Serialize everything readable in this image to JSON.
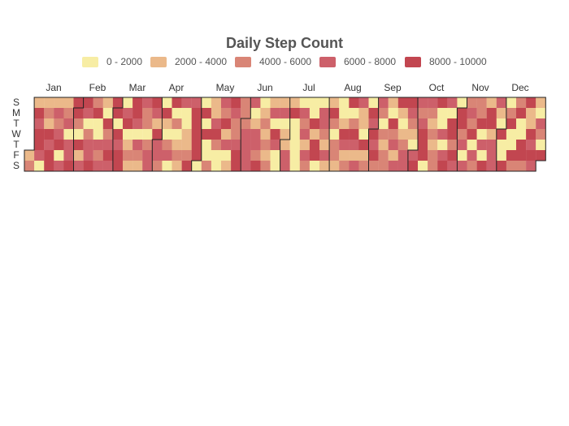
{
  "chart_data": {
    "type": "heatmap",
    "title": "Daily Step Count",
    "legend": {
      "placement": "top-center",
      "bins": [
        {
          "label": "0 - 2000",
          "color": "#f7eda4"
        },
        {
          "label": "2000 - 4000",
          "color": "#ebb98a"
        },
        {
          "label": "4000 - 6000",
          "color": "#d98576"
        },
        {
          "label": "6000 - 8000",
          "color": "#cd606a"
        },
        {
          "label": "8000 - 10000",
          "color": "#c24650"
        }
      ]
    },
    "month_labels": [
      "Jan",
      "Feb",
      "Mar",
      "Apr",
      "May",
      "Jun",
      "Jul",
      "Aug",
      "Sep",
      "Oct",
      "Nov",
      "Dec"
    ],
    "weekday_labels": [
      "S",
      "M",
      "T",
      "W",
      "T",
      "F",
      "S"
    ],
    "first_weekday": 5,
    "days_in_month": [
      31,
      28,
      31,
      30,
      31,
      30,
      31,
      31,
      30,
      31,
      30,
      31
    ],
    "values": [
      1,
      2,
      1,
      4,
      3,
      4,
      4,
      3,
      0,
      1,
      2,
      1,
      4,
      3,
      4,
      4,
      1,
      3,
      2,
      3,
      4,
      0,
      3,
      1,
      2,
      3,
      0,
      3,
      3,
      4,
      4,
      4,
      2,
      0,
      4,
      1,
      3,
      4,
      3,
      0,
      2,
      3,
      3,
      4,
      2,
      4,
      0,
      0,
      3,
      2,
      3,
      1,
      0,
      4,
      2,
      3,
      4,
      3,
      4,
      4,
      0,
      4,
      3,
      4,
      4,
      0,
      3,
      4,
      0,
      1,
      2,
      1,
      4,
      4,
      3,
      0,
      3,
      2,
      1,
      3,
      2,
      2,
      0,
      2,
      3,
      3,
      4,
      3,
      1,
      4,
      3,
      3,
      2,
      0,
      4,
      1,
      0,
      2,
      3,
      0,
      4,
      0,
      2,
      0,
      1,
      2,
      1,
      3,
      0,
      0,
      1,
      1,
      2,
      4,
      3,
      4,
      4,
      4,
      4,
      4,
      0,
      0,
      4,
      0,
      4,
      0,
      0,
      2,
      1,
      1,
      3,
      4,
      2,
      0,
      0,
      3,
      2,
      4,
      1,
      3,
      0,
      1,
      4,
      3,
      2,
      2,
      3,
      4,
      4,
      2,
      2,
      2,
      3,
      3,
      3,
      3,
      3,
      0,
      1,
      3,
      3,
      2,
      4,
      0,
      1,
      2,
      1,
      2,
      1,
      2,
      1,
      3,
      0,
      4,
      3,
      0,
      0,
      1,
      3,
      0,
      1,
      1,
      3,
      3,
      1,
      4,
      0,
      0,
      0,
      0,
      0,
      0,
      3,
      2,
      3,
      1,
      3,
      2,
      0,
      0,
      4,
      1,
      4,
      4,
      0,
      0,
      3,
      3,
      2,
      1,
      3,
      1,
      1,
      4,
      2,
      0,
      2,
      2,
      1,
      0,
      0,
      1,
      4,
      3,
      1,
      2,
      4,
      0,
      2,
      4,
      3,
      1,
      3,
      3,
      1,
      1,
      0,
      4,
      1,
      2,
      0,
      4,
      3,
      4,
      3,
      4,
      2,
      3,
      2,
      0,
      2,
      1,
      2,
      2,
      1,
      0,
      4,
      2,
      3,
      1,
      3,
      4,
      1,
      0,
      1,
      2,
      3,
      3,
      4,
      3,
      2,
      1,
      0,
      3,
      4,
      3,
      2,
      3,
      4,
      4,
      4,
      0,
      3,
      2,
      1,
      2,
      1,
      2,
      2,
      4,
      0,
      0,
      3,
      0,
      3,
      4,
      3,
      0,
      4,
      4,
      2,
      4,
      3,
      0,
      4,
      4,
      2,
      3,
      0,
      3,
      2,
      3,
      2,
      4,
      0,
      3,
      2,
      2,
      2,
      4,
      0,
      3,
      0,
      4,
      1,
      4,
      4,
      1,
      3,
      3,
      3,
      3,
      1,
      0,
      4,
      0,
      0,
      4,
      0,
      2,
      4,
      0,
      0,
      4,
      2,
      2,
      4,
      0,
      0,
      4,
      4,
      2,
      4,
      1,
      1,
      4,
      3,
      4,
      3,
      1,
      0,
      3,
      2,
      0,
      4
    ]
  }
}
